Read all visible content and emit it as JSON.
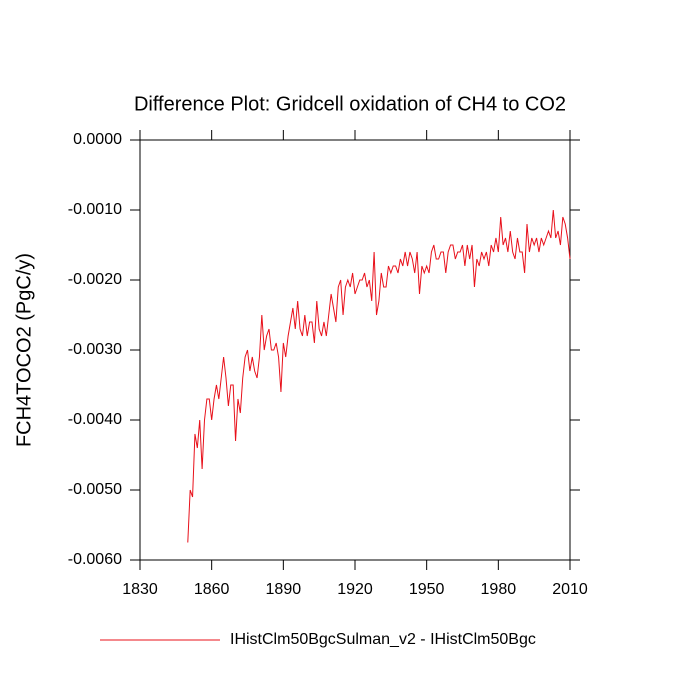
{
  "chart_data": {
    "type": "line",
    "title": "Difference Plot: Gridcell oxidation of CH4 to CO2",
    "y_label": "FCH4TOCO2  (PgC/y)",
    "x": [
      1850,
      1851,
      1852,
      1853,
      1854,
      1855,
      1856,
      1857,
      1858,
      1859,
      1860,
      1861,
      1862,
      1863,
      1864,
      1865,
      1866,
      1867,
      1868,
      1869,
      1870,
      1871,
      1872,
      1873,
      1874,
      1875,
      1876,
      1877,
      1878,
      1879,
      1880,
      1881,
      1882,
      1883,
      1884,
      1885,
      1886,
      1887,
      1888,
      1889,
      1890,
      1891,
      1892,
      1893,
      1894,
      1895,
      1896,
      1897,
      1898,
      1899,
      1900,
      1901,
      1902,
      1903,
      1904,
      1905,
      1906,
      1907,
      1908,
      1909,
      1910,
      1911,
      1912,
      1913,
      1914,
      1915,
      1916,
      1917,
      1918,
      1919,
      1920,
      1921,
      1922,
      1923,
      1924,
      1925,
      1926,
      1927,
      1928,
      1929,
      1930,
      1931,
      1932,
      1933,
      1934,
      1935,
      1936,
      1937,
      1938,
      1939,
      1940,
      1941,
      1942,
      1943,
      1944,
      1945,
      1946,
      1947,
      1948,
      1949,
      1950,
      1951,
      1952,
      1953,
      1954,
      1955,
      1956,
      1957,
      1958,
      1959,
      1960,
      1961,
      1962,
      1963,
      1964,
      1965,
      1966,
      1967,
      1968,
      1969,
      1970,
      1971,
      1972,
      1973,
      1974,
      1975,
      1976,
      1977,
      1978,
      1979,
      1980,
      1981,
      1982,
      1983,
      1984,
      1985,
      1986,
      1987,
      1988,
      1989,
      1990,
      1991,
      1992,
      1993,
      1994,
      1995,
      1996,
      1997,
      1998,
      1999,
      2000,
      2001,
      2002,
      2003,
      2004,
      2005,
      2006,
      2007,
      2008,
      2009,
      2010
    ],
    "series": [
      {
        "name": "IHistClm50BgcSulman_v2 - IHistClm50Bgc",
        "color": "#e8101a",
        "values": [
          -0.00575,
          -0.005,
          -0.0051,
          -0.0042,
          -0.0044,
          -0.004,
          -0.0047,
          -0.004,
          -0.0037,
          -0.0037,
          -0.004,
          -0.0037,
          -0.0035,
          -0.0037,
          -0.0034,
          -0.0031,
          -0.0034,
          -0.0038,
          -0.0035,
          -0.0035,
          -0.0043,
          -0.0037,
          -0.0039,
          -0.0034,
          -0.0031,
          -0.003,
          -0.0033,
          -0.0031,
          -0.0033,
          -0.0034,
          -0.0031,
          -0.0025,
          -0.003,
          -0.0028,
          -0.0027,
          -0.003,
          -0.003,
          -0.0029,
          -0.0031,
          -0.0036,
          -0.0029,
          -0.0031,
          -0.0028,
          -0.0026,
          -0.0024,
          -0.0027,
          -0.0023,
          -0.0027,
          -0.0028,
          -0.0025,
          -0.0028,
          -0.0026,
          -0.0026,
          -0.0029,
          -0.0023,
          -0.0027,
          -0.0028,
          -0.0026,
          -0.0028,
          -0.0025,
          -0.0022,
          -0.0024,
          -0.0026,
          -0.0021,
          -0.002,
          -0.0025,
          -0.0021,
          -0.002,
          -0.0021,
          -0.0019,
          -0.0022,
          -0.0021,
          -0.002,
          -0.002,
          -0.0019,
          -0.0021,
          -0.002,
          -0.0023,
          -0.0016,
          -0.0025,
          -0.0023,
          -0.0019,
          -0.0021,
          -0.0021,
          -0.0018,
          -0.0019,
          -0.0018,
          -0.0018,
          -0.0019,
          -0.0017,
          -0.0018,
          -0.0016,
          -0.0018,
          -0.0016,
          -0.0017,
          -0.0019,
          -0.0016,
          -0.0022,
          -0.0018,
          -0.0019,
          -0.0018,
          -0.0019,
          -0.0016,
          -0.0015,
          -0.0017,
          -0.0017,
          -0.0016,
          -0.0016,
          -0.0019,
          -0.0016,
          -0.0015,
          -0.0015,
          -0.0017,
          -0.0016,
          -0.0016,
          -0.0015,
          -0.0018,
          -0.0015,
          -0.0017,
          -0.0015,
          -0.0021,
          -0.0017,
          -0.0018,
          -0.0016,
          -0.0017,
          -0.0016,
          -0.0018,
          -0.0015,
          -0.0016,
          -0.0014,
          -0.0016,
          -0.0011,
          -0.0015,
          -0.0014,
          -0.0016,
          -0.0013,
          -0.0016,
          -0.0017,
          -0.0014,
          -0.0016,
          -0.0016,
          -0.0019,
          -0.0012,
          -0.0016,
          -0.0014,
          -0.0015,
          -0.0014,
          -0.0016,
          -0.0014,
          -0.0015,
          -0.0014,
          -0.0013,
          -0.0014,
          -0.001,
          -0.0014,
          -0.0013,
          -0.0015,
          -0.0011,
          -0.0012,
          -0.0014,
          -0.0017
        ]
      }
    ],
    "xlim": [
      1830,
      2010
    ],
    "xticks": [
      1830,
      1860,
      1890,
      1920,
      1950,
      1980,
      2010
    ],
    "ylim": [
      -0.006,
      0
    ],
    "yticks": [
      {
        "value": -0.006,
        "label": "-0.0060"
      },
      {
        "value": -0.005,
        "label": "-0.0050"
      },
      {
        "value": -0.004,
        "label": "-0.0040"
      },
      {
        "value": -0.003,
        "label": "-0.0030"
      },
      {
        "value": -0.002,
        "label": "-0.0020"
      },
      {
        "value": -0.001,
        "label": "-0.0010"
      },
      {
        "value": 0,
        "label": "0.0000"
      }
    ],
    "grid": false
  }
}
